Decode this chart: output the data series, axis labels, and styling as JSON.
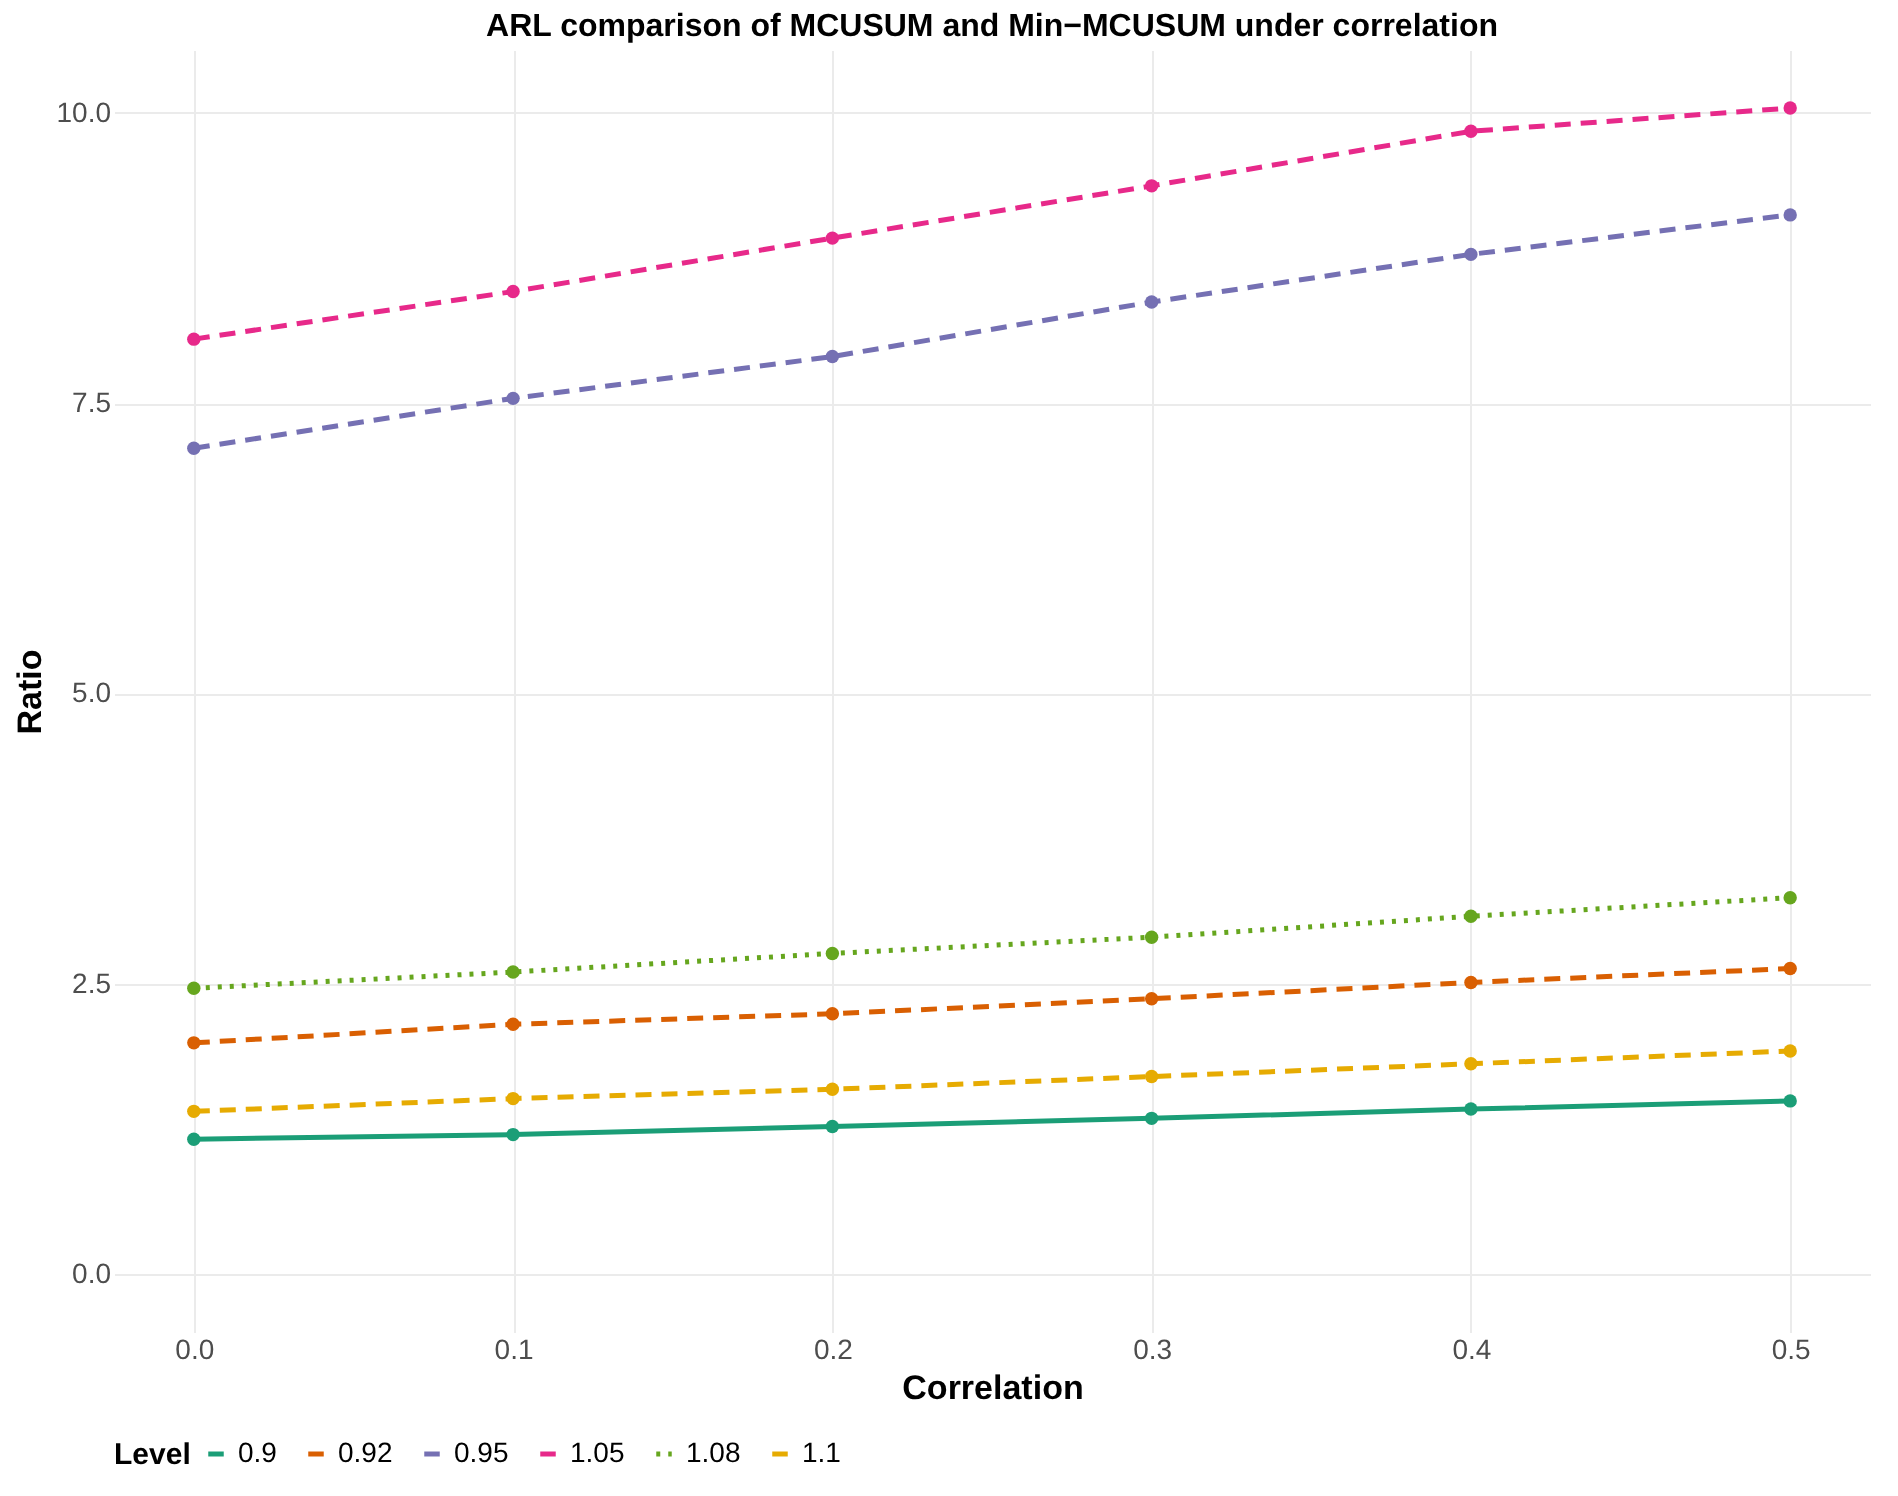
{
  "chart_data": {
    "type": "line",
    "title": "ARL comparison of MCUSUM and Min−MCUSUM under correlation",
    "xlabel": "Correlation",
    "ylabel": "Ratio",
    "legend_title": "Level",
    "x": [
      0,
      0.1,
      0.2,
      0.3,
      0.4,
      0.5
    ],
    "series": [
      {
        "name": "0.9",
        "color": "#1b9e77",
        "line_style": "solid",
        "values": [
          1.16,
          1.2,
          1.27,
          1.34,
          1.42,
          1.49
        ]
      },
      {
        "name": "0.92",
        "color": "#d95f02",
        "line_style": "dashed",
        "values": [
          1.99,
          2.15,
          2.24,
          2.37,
          2.51,
          2.63
        ]
      },
      {
        "name": "0.95",
        "color": "#7570b3",
        "line_style": "dashed",
        "values": [
          7.11,
          7.54,
          7.9,
          8.37,
          8.78,
          9.12
        ]
      },
      {
        "name": "1.05",
        "color": "#e7298a",
        "line_style": "dashed",
        "values": [
          8.05,
          8.46,
          8.92,
          9.37,
          9.84,
          10.04
        ]
      },
      {
        "name": "1.08",
        "color": "#66a61e",
        "line_style": "dotted",
        "values": [
          2.46,
          2.6,
          2.76,
          2.9,
          3.08,
          3.24
        ]
      },
      {
        "name": "1.1",
        "color": "#e6ab02",
        "line_style": "dashed",
        "values": [
          1.4,
          1.51,
          1.59,
          1.7,
          1.81,
          1.92
        ]
      }
    ],
    "xlim": [
      -0.025,
      0.525
    ],
    "ylim": [
      -0.5,
      10.54
    ],
    "xticks": [
      {
        "value": 0,
        "label": "0.0"
      },
      0.1,
      0.2,
      0.3,
      0.4,
      0.5
    ],
    "yticks": [
      {
        "value": 0,
        "label": "0.0"
      },
      2.5,
      {
        "value": 5,
        "label": "5.0"
      },
      7.5,
      {
        "value": 10,
        "label": "10.0"
      }
    ],
    "grid": true,
    "legend": "bottom",
    "marker": "circle"
  }
}
